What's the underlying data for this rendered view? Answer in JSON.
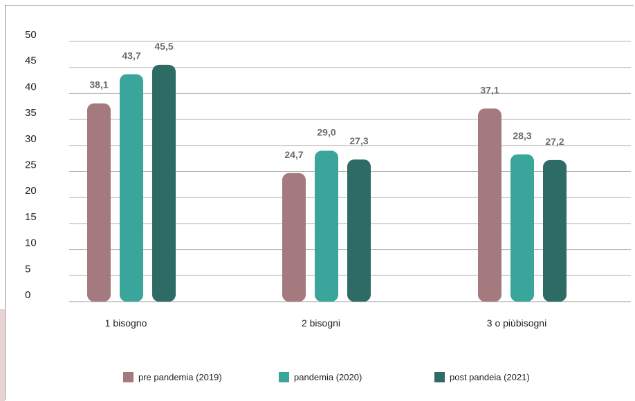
{
  "chart_data": {
    "type": "bar",
    "categories": [
      "1 bisogno",
      "2 bisogni",
      "3 o piùbisogni"
    ],
    "series": [
      {
        "name": "pre pandemia (2019)",
        "color": "#a47a7f",
        "values": [
          38.1,
          24.7,
          37.1
        ],
        "labels": [
          "38,1",
          "24,7",
          "37,1"
        ]
      },
      {
        "name": "pandemia (2020)",
        "color": "#3aa69b",
        "values": [
          43.7,
          29.0,
          28.3
        ],
        "labels": [
          "43,7",
          "29,0",
          "28,3"
        ]
      },
      {
        "name": "post pandeia (2021)",
        "color": "#2e6b64",
        "values": [
          45.5,
          27.3,
          27.2
        ],
        "labels": [
          "45,5",
          "27,3",
          "27,2"
        ]
      }
    ],
    "yticks": [
      0,
      5,
      10,
      15,
      20,
      25,
      30,
      35,
      40,
      45,
      50
    ],
    "ylim": [
      0,
      50
    ],
    "grid": true,
    "legend": "bottom",
    "title": "",
    "xlabel": "",
    "ylabel": ""
  }
}
